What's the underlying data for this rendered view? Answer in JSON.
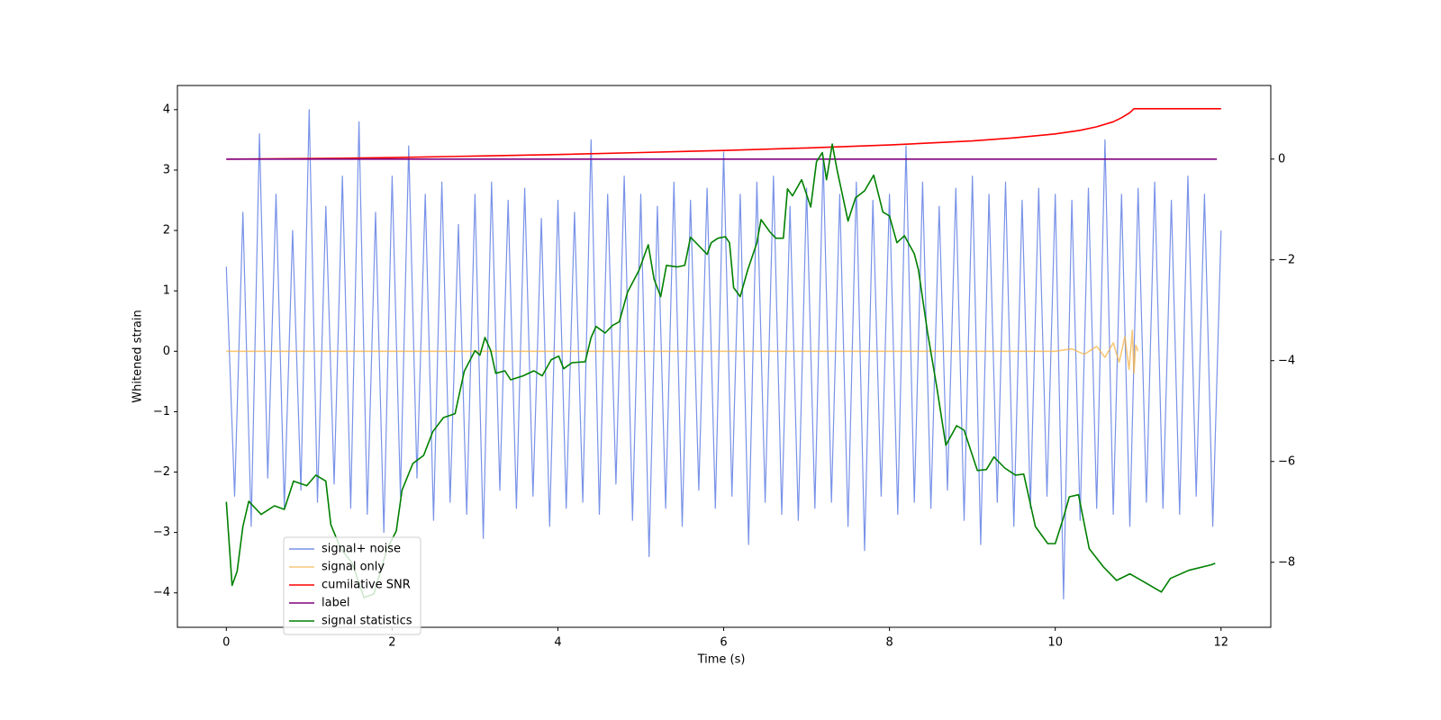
{
  "chart_data": {
    "type": "line",
    "xlabel": "Time (s)",
    "ylabel": "Whitened strain",
    "xlim": [
      -0.59,
      12.6
    ],
    "ylim": [
      -4.57,
      4.4
    ],
    "y2lim": [
      -9.29,
      1.46
    ],
    "xticks": [
      0,
      2,
      4,
      6,
      8,
      10,
      12
    ],
    "yticks": [
      {
        "value": -4,
        "label": "−4"
      },
      {
        "value": -3,
        "label": "−3"
      },
      {
        "value": -2,
        "label": "−2"
      },
      {
        "value": -1,
        "label": "−1"
      },
      0,
      1,
      2,
      3,
      4
    ],
    "y2ticks": [
      {
        "value": -8,
        "label": "−8"
      },
      {
        "value": -6,
        "label": "−6"
      },
      {
        "value": -4,
        "label": "−4"
      },
      {
        "value": -2,
        "label": "−2"
      },
      0
    ],
    "grid": false,
    "legend_loc": "lower left",
    "series": [
      {
        "name": "signal+ noise",
        "color": "#7892e8",
        "axis": "y",
        "x": [
          0,
          0.1,
          0.2,
          0.3,
          0.4,
          0.5,
          0.6,
          0.7,
          0.8,
          0.9,
          1,
          1.1,
          1.2,
          1.3,
          1.4,
          1.5,
          1.6,
          1.7,
          1.8,
          1.9,
          2,
          2.1,
          2.2,
          2.3,
          2.4,
          2.5,
          2.6,
          2.7,
          2.8,
          2.9,
          3,
          3.1,
          3.2,
          3.3,
          3.4,
          3.5,
          3.6,
          3.7,
          3.8,
          3.9,
          4,
          4.1,
          4.2,
          4.3,
          4.4,
          4.5,
          4.6,
          4.7,
          4.8,
          4.9,
          5,
          5.1,
          5.2,
          5.3,
          5.4,
          5.5,
          5.6,
          5.7,
          5.8,
          5.9,
          6,
          6.1,
          6.2,
          6.3,
          6.4,
          6.5,
          6.6,
          6.7,
          6.8,
          6.9,
          7,
          7.1,
          7.2,
          7.3,
          7.4,
          7.5,
          7.6,
          7.7,
          7.8,
          7.9,
          8,
          8.1,
          8.2,
          8.3,
          8.4,
          8.5,
          8.6,
          8.7,
          8.8,
          8.9,
          9,
          9.1,
          9.2,
          9.3,
          9.4,
          9.5,
          9.6,
          9.7,
          9.8,
          9.9,
          10,
          10.1,
          10.2,
          10.3,
          10.4,
          10.5,
          10.6,
          10.7,
          10.8,
          10.9,
          11,
          11.1,
          11.2,
          11.3,
          11.4,
          11.5,
          11.6,
          11.7,
          11.8,
          11.9,
          12
        ],
        "values": [
          1.4,
          -2.4,
          2.3,
          -2.9,
          3.6,
          -2.1,
          2.6,
          -2.6,
          2.0,
          -2.3,
          4.0,
          -2.5,
          2.4,
          -2.2,
          2.9,
          -2.6,
          3.8,
          -2.7,
          2.3,
          -3.0,
          2.9,
          -2.4,
          3.4,
          -2.1,
          2.6,
          -2.8,
          2.8,
          -2.5,
          2.1,
          -2.7,
          2.6,
          -3.1,
          2.8,
          -2.3,
          2.5,
          -2.6,
          2.7,
          -2.4,
          2.2,
          -2.9,
          2.5,
          -2.6,
          2.3,
          -2.5,
          3.5,
          -2.7,
          2.6,
          -2.2,
          2.9,
          -2.8,
          2.6,
          -3.4,
          2.4,
          -2.6,
          2.8,
          -2.9,
          2.5,
          -2.3,
          2.7,
          -2.6,
          3.3,
          -2.4,
          2.6,
          -3.2,
          2.8,
          -2.5,
          2.9,
          -2.7,
          2.4,
          -2.8,
          2.7,
          -2.6,
          3.2,
          -2.5,
          2.6,
          -2.9,
          2.8,
          -3.3,
          2.5,
          -2.4,
          2.6,
          -2.7,
          3.4,
          -2.5,
          2.8,
          -2.6,
          2.4,
          -2.3,
          2.7,
          -2.8,
          2.9,
          -3.2,
          2.6,
          -2.5,
          2.8,
          -2.9,
          2.5,
          -2.6,
          2.7,
          -2.4,
          2.6,
          -4.1,
          2.5,
          -2.8,
          2.7,
          -2.6,
          3.5,
          -2.7,
          2.6,
          -2.9,
          2.7,
          -2.5,
          2.8,
          -2.6,
          2.5,
          -2.7,
          2.9,
          -2.4,
          2.6,
          -2.9,
          2.0
        ]
      },
      {
        "name": "signal only",
        "color": "#f5b041",
        "axis": "y",
        "x": [
          0,
          4,
          8,
          10,
          10.2,
          10.35,
          10.5,
          10.6,
          10.7,
          10.77,
          10.84,
          10.89,
          10.93,
          10.95,
          10.97,
          11
        ],
        "values": [
          0,
          0,
          0,
          0,
          0.04,
          -0.05,
          0.08,
          -0.1,
          0.14,
          -0.18,
          0.24,
          -0.3,
          0.35,
          -0.36,
          0.1,
          0
        ]
      },
      {
        "name": "cumilative SNR",
        "color": "#ff0000",
        "axis": "y2",
        "x": [
          0,
          1,
          2,
          3,
          4,
          5,
          6,
          7,
          8,
          9,
          9.5,
          10,
          10.3,
          10.5,
          10.7,
          10.8,
          10.9,
          10.95,
          12
        ],
        "values": [
          0,
          0.01,
          0.03,
          0.06,
          0.09,
          0.13,
          0.17,
          0.22,
          0.28,
          0.36,
          0.42,
          0.5,
          0.57,
          0.64,
          0.74,
          0.82,
          0.92,
          1,
          1
        ]
      },
      {
        "name": "label",
        "color": "#800080",
        "axis": "y2",
        "x": [
          0,
          11.95
        ],
        "values": [
          0,
          0
        ]
      },
      {
        "name": "signal statistics",
        "color": "#008000",
        "axis": "y2",
        "x": [
          0,
          0.07,
          0.13,
          0.2,
          0.27,
          0.42,
          0.58,
          0.7,
          0.81,
          0.97,
          1.08,
          1.2,
          1.26,
          1.38,
          1.52,
          1.66,
          1.78,
          1.94,
          2.05,
          2.12,
          2.25,
          2.38,
          2.49,
          2.62,
          2.76,
          2.87,
          3.0,
          3.06,
          3.12,
          3.19,
          3.25,
          3.36,
          3.43,
          3.58,
          3.71,
          3.81,
          3.92,
          4.01,
          4.07,
          4.17,
          4.33,
          4.4,
          4.46,
          4.57,
          4.66,
          4.74,
          4.84,
          4.98,
          5.05,
          5.09,
          5.16,
          5.24,
          5.31,
          5.44,
          5.53,
          5.6,
          5.69,
          5.8,
          5.85,
          5.93,
          6.02,
          6.07,
          6.12,
          6.2,
          6.29,
          6.4,
          6.45,
          6.56,
          6.63,
          6.72,
          6.77,
          6.83,
          6.94,
          7.05,
          7.12,
          7.19,
          7.24,
          7.31,
          7.37,
          7.5,
          7.59,
          7.7,
          7.81,
          7.92,
          8.0,
          8.09,
          8.18,
          8.3,
          8.35,
          8.46,
          8.57,
          8.68,
          8.81,
          8.9,
          9.06,
          9.17,
          9.26,
          9.39,
          9.52,
          9.62,
          9.76,
          9.91,
          10.0,
          10.1,
          10.17,
          10.28,
          10.41,
          10.58,
          10.74,
          10.9,
          11.04,
          11.28,
          11.39,
          11.61,
          11.88,
          11.93
        ],
        "values": [
          -6.8,
          -8.46,
          -8.18,
          -7.29,
          -6.79,
          -7.05,
          -6.88,
          -6.95,
          -6.39,
          -6.48,
          -6.27,
          -6.39,
          -7.25,
          -7.73,
          -8.02,
          -8.7,
          -8.63,
          -7.73,
          -7.38,
          -6.57,
          -6.04,
          -5.88,
          -5.41,
          -5.13,
          -5.05,
          -4.21,
          -3.8,
          -3.89,
          -3.54,
          -3.8,
          -4.25,
          -4.2,
          -4.38,
          -4.3,
          -4.2,
          -4.3,
          -3.98,
          -3.91,
          -4.16,
          -4.04,
          -4.02,
          -3.54,
          -3.32,
          -3.45,
          -3.3,
          -3.23,
          -2.64,
          -2.2,
          -1.88,
          -1.7,
          -2.38,
          -2.73,
          -2.11,
          -2.14,
          -2.11,
          -1.55,
          -1.7,
          -1.89,
          -1.66,
          -1.57,
          -1.54,
          -1.66,
          -2.55,
          -2.73,
          -2.2,
          -1.66,
          -1.2,
          -1.45,
          -1.57,
          -1.57,
          -0.59,
          -0.73,
          -0.41,
          -0.95,
          -0.05,
          0.13,
          -0.41,
          0.3,
          -0.23,
          -1.23,
          -0.77,
          -0.63,
          -0.32,
          -1.05,
          -1.13,
          -1.66,
          -1.52,
          -1.88,
          -2.2,
          -3.45,
          -4.52,
          -5.68,
          -5.29,
          -5.38,
          -6.18,
          -6.16,
          -5.91,
          -6.13,
          -6.27,
          -6.25,
          -7.29,
          -7.63,
          -7.63,
          -7.11,
          -6.7,
          -6.66,
          -7.73,
          -8.09,
          -8.36,
          -8.23,
          -8.36,
          -8.59,
          -8.32,
          -8.16,
          -8.05,
          -8.02
        ]
      }
    ]
  }
}
